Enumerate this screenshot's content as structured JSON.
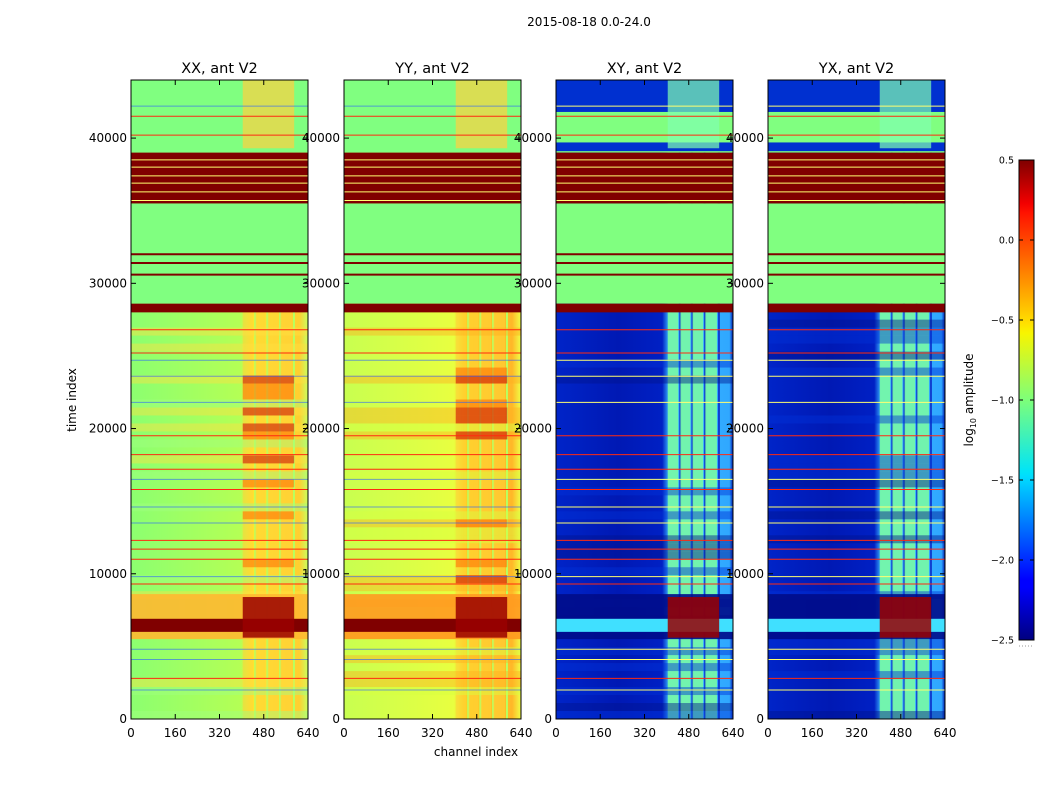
{
  "chart_data": {
    "type": "heatmap",
    "suptitle": "2015-08-18 0.0-24.0",
    "xlabel": "channel index",
    "ylabel": "time index",
    "colorbar_label": "log10 amplitude",
    "colormap": "jet",
    "color_range": [
      -2.5,
      0.5
    ],
    "colorbar_ticks": [
      0.5,
      0.0,
      -0.5,
      -1.0,
      -1.5,
      -2.0,
      -2.5
    ],
    "colorbar_tick_labels": [
      "0.5",
      "0.0",
      "−0.5",
      "−1.0",
      "−1.5",
      "−2.0",
      "−2.5"
    ],
    "xlim": [
      0,
      640
    ],
    "ylim": [
      0,
      44000
    ],
    "xticks": [
      0,
      160,
      320,
      480,
      640
    ],
    "yticks": [
      0,
      10000,
      20000,
      30000,
      40000
    ],
    "panels": [
      {
        "title": "XX, ant V2",
        "polarization": "XX"
      },
      {
        "title": "YY, ant V2",
        "polarization": "YY"
      },
      {
        "title": "XY, ant V2",
        "polarization": "XY"
      },
      {
        "title": "YX, ant V2",
        "polarization": "YX"
      }
    ],
    "flagged_bands": [
      {
        "from": 35500,
        "to": 39000,
        "value": 0.5
      },
      {
        "from": 28000,
        "to": 28600,
        "value": 0.5
      }
    ],
    "empty_bands": [
      {
        "from": 39000,
        "to": 44000
      },
      {
        "from": 28600,
        "to": 35500
      }
    ],
    "colors": {
      "saturated": "#800000",
      "empty": "#80ff80",
      "cross_background": "#0a1fc0",
      "line_red": "#ff2a10",
      "line_yellow": "#ffff70"
    }
  }
}
